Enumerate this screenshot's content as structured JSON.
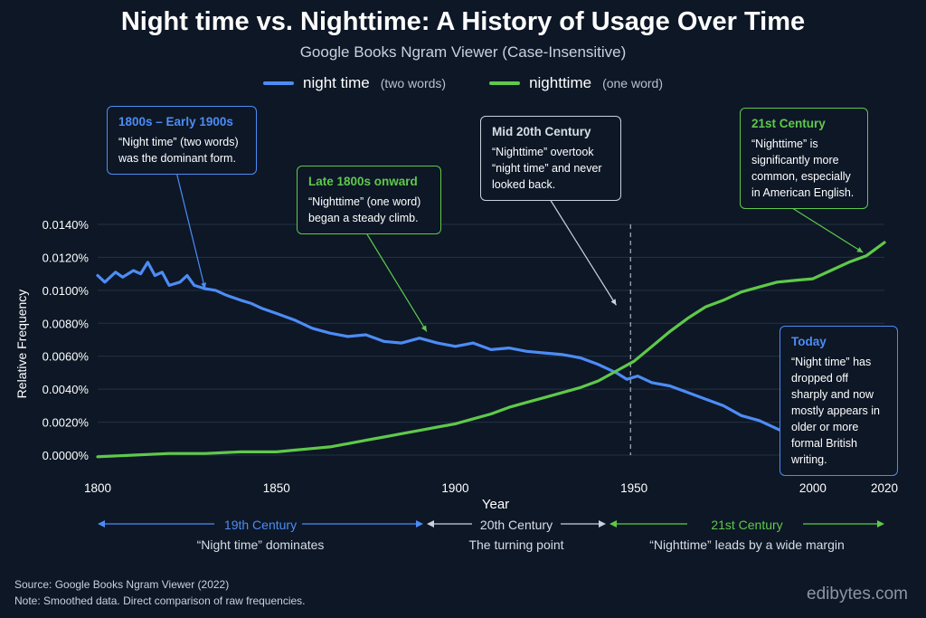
{
  "title": "Night time vs. Nighttime: A History of Usage Over Time",
  "subtitle": "Google Books Ngram Viewer (Case-Insensitive)",
  "legend": [
    {
      "name": "night time",
      "note": "(two words)",
      "color": "#4d8cf5"
    },
    {
      "name": "nighttime",
      "note": "(one word)",
      "color": "#5fc94a"
    }
  ],
  "annotations": {
    "a1": {
      "heading": "1800s – Early 1900s",
      "body": "“Night time” (two words) was the dominant form."
    },
    "a2": {
      "heading": "Late 1800s onward",
      "body": "“Nighttime” (one word) began a steady climb."
    },
    "a3": {
      "heading": "Mid 20th Century",
      "body": "“Nighttime” overtook “night time” and never looked back."
    },
    "a4": {
      "heading": "21st Century",
      "body": "“Nighttime” is significantly more common, especially in American English."
    },
    "a5": {
      "heading": "Today",
      "body": "“Night time” has dropped off sharply and now mostly appears in older or more formal British writing."
    }
  },
  "eras": [
    {
      "name": "19th Century",
      "desc": "“Night time” dominates",
      "color": "#4d8cf5"
    },
    {
      "name": "20th Century",
      "desc": "The turning point",
      "color": "#c9d1dc"
    },
    {
      "name": "21st Century",
      "desc": "“Nighttime” leads by a wide margin",
      "color": "#5fc94a"
    }
  ],
  "footer": {
    "source": "Source: Google Books Ngram Viewer (2022)",
    "note": "Note: Smoothed data. Direct comparison of raw frequencies.",
    "brand": "edibytes.com"
  },
  "chart_data": {
    "type": "line",
    "xlabel": "Year",
    "ylabel": "Relative Frequency",
    "xlim": [
      1800,
      2020
    ],
    "ylim": [
      0,
      0.014
    ],
    "x_ticks": [
      1800,
      1850,
      1900,
      1950,
      2000,
      2020
    ],
    "y_ticks": [
      "0.0000%",
      "0.0020%",
      "0.0040%",
      "0.0060%",
      "0.0080%",
      "0.0100%",
      "0.0120%",
      "0.0140%"
    ],
    "grid": true,
    "marker_year": 1949,
    "series": [
      {
        "name": "night time",
        "color": "#4d8cf5",
        "points": [
          [
            1800,
            0.0109
          ],
          [
            1802,
            0.0105
          ],
          [
            1805,
            0.0111
          ],
          [
            1807,
            0.0108
          ],
          [
            1810,
            0.0112
          ],
          [
            1812,
            0.011
          ],
          [
            1814,
            0.0117
          ],
          [
            1816,
            0.0109
          ],
          [
            1818,
            0.0111
          ],
          [
            1820,
            0.0103
          ],
          [
            1823,
            0.0105
          ],
          [
            1825,
            0.0109
          ],
          [
            1827,
            0.0103
          ],
          [
            1830,
            0.0101
          ],
          [
            1833,
            0.01
          ],
          [
            1836,
            0.0097
          ],
          [
            1840,
            0.0094
          ],
          [
            1843,
            0.0092
          ],
          [
            1846,
            0.0089
          ],
          [
            1850,
            0.0086
          ],
          [
            1855,
            0.0082
          ],
          [
            1860,
            0.0077
          ],
          [
            1865,
            0.0074
          ],
          [
            1870,
            0.0072
          ],
          [
            1875,
            0.0073
          ],
          [
            1880,
            0.0069
          ],
          [
            1885,
            0.0068
          ],
          [
            1890,
            0.0071
          ],
          [
            1895,
            0.0068
          ],
          [
            1900,
            0.0066
          ],
          [
            1905,
            0.0068
          ],
          [
            1910,
            0.0064
          ],
          [
            1915,
            0.0065
          ],
          [
            1920,
            0.0063
          ],
          [
            1925,
            0.0062
          ],
          [
            1930,
            0.0061
          ],
          [
            1935,
            0.0059
          ],
          [
            1940,
            0.0055
          ],
          [
            1945,
            0.005
          ],
          [
            1948,
            0.0046
          ],
          [
            1951,
            0.0048
          ],
          [
            1955,
            0.0044
          ],
          [
            1960,
            0.0042
          ],
          [
            1965,
            0.0038
          ],
          [
            1970,
            0.0034
          ],
          [
            1975,
            0.003
          ],
          [
            1980,
            0.0024
          ],
          [
            1985,
            0.0021
          ],
          [
            1990,
            0.0016
          ],
          [
            1995,
            0.0011
          ],
          [
            2000,
            0.0007
          ],
          [
            2005,
            0.0004
          ],
          [
            2010,
            0.0002
          ],
          [
            2015,
            0.0001
          ],
          [
            2020,
            -0.0003
          ]
        ]
      },
      {
        "name": "nighttime",
        "color": "#5fc94a",
        "points": [
          [
            1800,
            -0.0001
          ],
          [
            1810,
            0.0
          ],
          [
            1820,
            0.0001
          ],
          [
            1830,
            0.0001
          ],
          [
            1840,
            0.0002
          ],
          [
            1850,
            0.0002
          ],
          [
            1855,
            0.0003
          ],
          [
            1860,
            0.0004
          ],
          [
            1865,
            0.0005
          ],
          [
            1870,
            0.0007
          ],
          [
            1875,
            0.0009
          ],
          [
            1880,
            0.0011
          ],
          [
            1885,
            0.0013
          ],
          [
            1890,
            0.0015
          ],
          [
            1895,
            0.0017
          ],
          [
            1900,
            0.0019
          ],
          [
            1905,
            0.0022
          ],
          [
            1910,
            0.0025
          ],
          [
            1915,
            0.0029
          ],
          [
            1920,
            0.0032
          ],
          [
            1925,
            0.0035
          ],
          [
            1930,
            0.0038
          ],
          [
            1935,
            0.0041
          ],
          [
            1940,
            0.0045
          ],
          [
            1945,
            0.0051
          ],
          [
            1950,
            0.0057
          ],
          [
            1955,
            0.0066
          ],
          [
            1960,
            0.0075
          ],
          [
            1965,
            0.0083
          ],
          [
            1970,
            0.009
          ],
          [
            1975,
            0.0094
          ],
          [
            1980,
            0.0099
          ],
          [
            1985,
            0.0102
          ],
          [
            1990,
            0.0105
          ],
          [
            1995,
            0.0106
          ],
          [
            2000,
            0.0107
          ],
          [
            2005,
            0.0112
          ],
          [
            2010,
            0.0117
          ],
          [
            2015,
            0.0121
          ],
          [
            2020,
            0.0129
          ]
        ]
      }
    ]
  }
}
